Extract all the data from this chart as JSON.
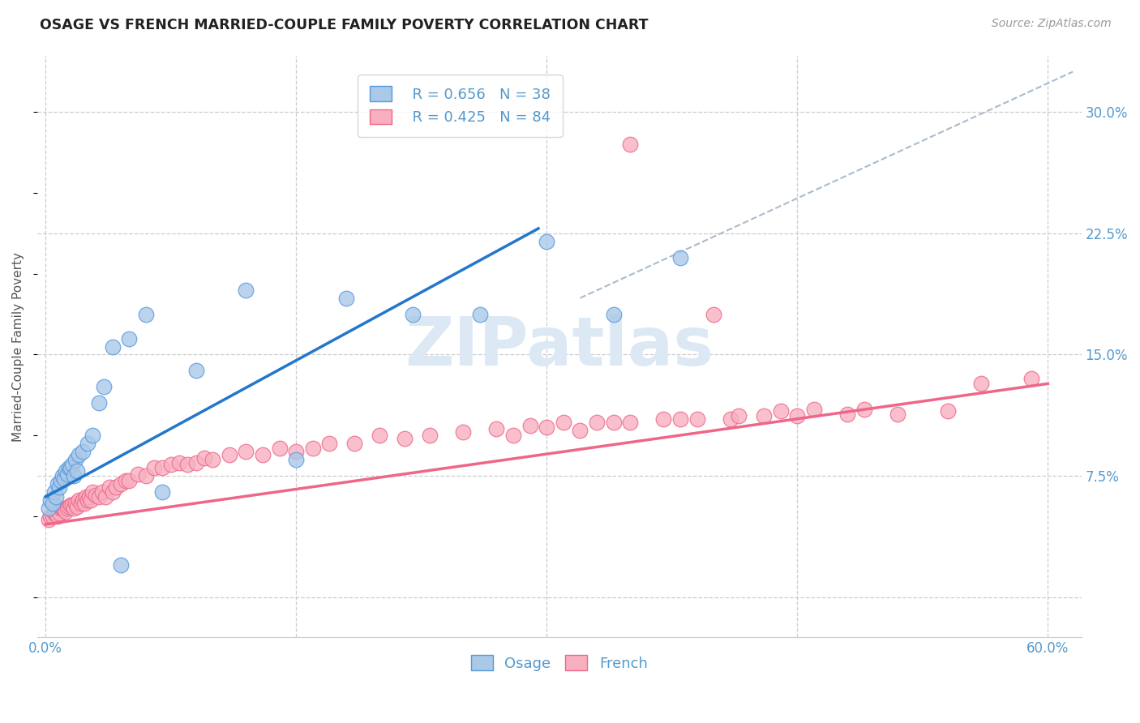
{
  "title": "OSAGE VS FRENCH MARRIED-COUPLE FAMILY POVERTY CORRELATION CHART",
  "source": "Source: ZipAtlas.com",
  "ylabel": "Married-Couple Family Poverty",
  "xlim": [
    -0.005,
    0.62
  ],
  "ylim": [
    -0.025,
    0.335
  ],
  "xtick_vals": [
    0.0,
    0.15,
    0.3,
    0.45,
    0.6
  ],
  "xtick_labels": [
    "0.0%",
    "",
    "",
    "",
    "60.0%"
  ],
  "yticks_right": [
    0.0,
    0.075,
    0.15,
    0.225,
    0.3
  ],
  "ytick_labels_right": [
    "",
    "7.5%",
    "15.0%",
    "22.5%",
    "30.0%"
  ],
  "osage_color": "#aac8e8",
  "french_color": "#f8b0c0",
  "osage_edge_color": "#5599dd",
  "french_edge_color": "#ee6688",
  "osage_line_color": "#2277cc",
  "french_line_color": "#ee6688",
  "ref_line_color": "#aabbcc",
  "background_color": "#ffffff",
  "grid_color": "#cccccc",
  "title_color": "#222222",
  "axis_label_color": "#555555",
  "tick_label_color": "#5599cc",
  "watermark_color": "#dde8f5",
  "osage_x": [
    0.002,
    0.003,
    0.004,
    0.005,
    0.006,
    0.007,
    0.008,
    0.009,
    0.01,
    0.011,
    0.012,
    0.013,
    0.014,
    0.015,
    0.016,
    0.017,
    0.018,
    0.019,
    0.02,
    0.022,
    0.025,
    0.028,
    0.032,
    0.035,
    0.04,
    0.045,
    0.05,
    0.06,
    0.07,
    0.09,
    0.12,
    0.15,
    0.18,
    0.22,
    0.26,
    0.3,
    0.34,
    0.38
  ],
  "osage_y": [
    0.055,
    0.06,
    0.058,
    0.065,
    0.062,
    0.07,
    0.068,
    0.072,
    0.075,
    0.073,
    0.078,
    0.076,
    0.08,
    0.08,
    0.082,
    0.075,
    0.085,
    0.078,
    0.088,
    0.09,
    0.095,
    0.1,
    0.12,
    0.13,
    0.155,
    0.02,
    0.16,
    0.175,
    0.065,
    0.14,
    0.19,
    0.085,
    0.185,
    0.175,
    0.175,
    0.22,
    0.175,
    0.21
  ],
  "french_x": [
    0.002,
    0.003,
    0.004,
    0.005,
    0.006,
    0.007,
    0.008,
    0.009,
    0.01,
    0.011,
    0.012,
    0.013,
    0.014,
    0.015,
    0.016,
    0.017,
    0.018,
    0.019,
    0.02,
    0.021,
    0.022,
    0.023,
    0.024,
    0.025,
    0.026,
    0.027,
    0.028,
    0.03,
    0.032,
    0.034,
    0.036,
    0.038,
    0.04,
    0.042,
    0.045,
    0.048,
    0.05,
    0.055,
    0.06,
    0.065,
    0.07,
    0.075,
    0.08,
    0.085,
    0.09,
    0.095,
    0.1,
    0.11,
    0.12,
    0.13,
    0.14,
    0.15,
    0.16,
    0.17,
    0.185,
    0.2,
    0.215,
    0.23,
    0.25,
    0.27,
    0.29,
    0.31,
    0.33,
    0.35,
    0.37,
    0.39,
    0.41,
    0.43,
    0.45,
    0.48,
    0.51,
    0.54,
    0.28,
    0.3,
    0.32,
    0.34,
    0.38,
    0.415,
    0.44,
    0.46,
    0.49,
    0.56,
    0.59,
    0.4,
    0.35
  ],
  "french_y": [
    0.048,
    0.05,
    0.05,
    0.052,
    0.052,
    0.05,
    0.052,
    0.055,
    0.055,
    0.054,
    0.053,
    0.055,
    0.056,
    0.057,
    0.057,
    0.055,
    0.058,
    0.056,
    0.06,
    0.058,
    0.06,
    0.058,
    0.062,
    0.06,
    0.062,
    0.06,
    0.065,
    0.063,
    0.062,
    0.065,
    0.062,
    0.068,
    0.065,
    0.068,
    0.07,
    0.072,
    0.072,
    0.076,
    0.075,
    0.08,
    0.08,
    0.082,
    0.083,
    0.082,
    0.083,
    0.086,
    0.085,
    0.088,
    0.09,
    0.088,
    0.092,
    0.09,
    0.092,
    0.095,
    0.095,
    0.1,
    0.098,
    0.1,
    0.102,
    0.104,
    0.106,
    0.108,
    0.108,
    0.108,
    0.11,
    0.11,
    0.11,
    0.112,
    0.112,
    0.113,
    0.113,
    0.115,
    0.1,
    0.105,
    0.103,
    0.108,
    0.11,
    0.112,
    0.115,
    0.116,
    0.116,
    0.132,
    0.135,
    0.175,
    0.28
  ],
  "osage_line_x": [
    0.0,
    0.295
  ],
  "osage_line_y": [
    0.062,
    0.228
  ],
  "french_line_x": [
    0.0,
    0.6
  ],
  "french_line_y": [
    0.045,
    0.132
  ],
  "ref_line_x": [
    0.32,
    0.615
  ],
  "ref_line_y": [
    0.185,
    0.325
  ]
}
